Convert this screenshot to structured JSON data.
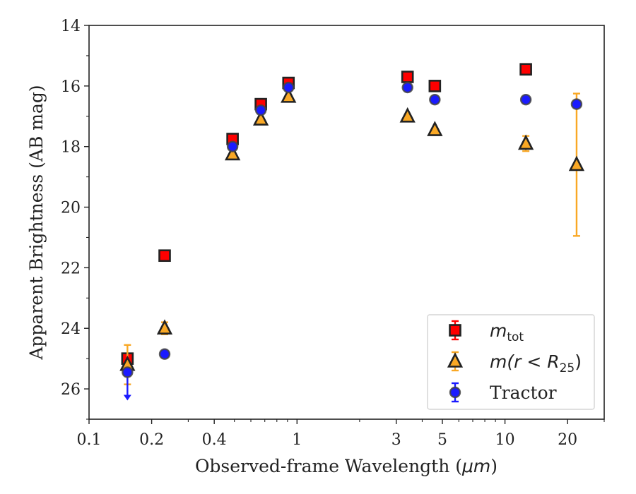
{
  "chart_data": {
    "type": "scatter",
    "title": "",
    "xlabel": "Observed-frame Wavelength (",
    "xlabel_unit": "μm",
    "xlabel_close": ")",
    "ylabel": "Apparent Brightness (AB mag)",
    "x_scale": "log",
    "xlim": [
      0.1,
      30
    ],
    "ylim": [
      27,
      14
    ],
    "y_inverted": true,
    "x_ticks": [
      0.1,
      0.2,
      0.4,
      1,
      3,
      5,
      10,
      20
    ],
    "x_tick_labels": [
      "0.1",
      "0.2",
      "0.4",
      "1",
      "3",
      "5",
      "10",
      "20"
    ],
    "y_ticks": [
      14,
      16,
      18,
      20,
      22,
      24,
      26
    ],
    "y_tick_labels": [
      "14",
      "16",
      "18",
      "20",
      "22",
      "24",
      "26"
    ],
    "grid": false,
    "legend_position": "bottom-right",
    "series": [
      {
        "name": "m_tot",
        "legend_label": {
          "base": "m",
          "sub": "tot"
        },
        "marker": "square",
        "color": "#ff0000",
        "edgecolor": "#222222",
        "errcolor": "#ff0000",
        "points": [
          {
            "x": 0.153,
            "y": 25.0,
            "err": 0.1
          },
          {
            "x": 0.231,
            "y": 21.6,
            "err": 0.05
          },
          {
            "x": 0.49,
            "y": 17.75,
            "err": 0.05
          },
          {
            "x": 0.67,
            "y": 16.6,
            "err": 0.05
          },
          {
            "x": 0.91,
            "y": 15.9,
            "err": 0.05
          },
          {
            "x": 3.4,
            "y": 15.7,
            "err": 0.05
          },
          {
            "x": 4.6,
            "y": 16.0,
            "err": 0.05
          },
          {
            "x": 12.6,
            "y": 15.45,
            "err": 0.05
          }
        ]
      },
      {
        "name": "m(r<R25)",
        "legend_label": {
          "base": "m(r < R",
          "sub": "25",
          "close": ")"
        },
        "marker": "triangle",
        "color": "#f9a825",
        "edgecolor": "#222222",
        "errcolor": "#f9a825",
        "points": [
          {
            "x": 0.153,
            "y": 25.2,
            "err": 0.65
          },
          {
            "x": 0.231,
            "y": 24.0,
            "err": 0.2
          },
          {
            "x": 0.49,
            "y": 18.25,
            "err": 0.05
          },
          {
            "x": 0.67,
            "y": 17.1,
            "err": 0.05
          },
          {
            "x": 0.91,
            "y": 16.35,
            "err": 0.05
          },
          {
            "x": 3.4,
            "y": 17.0,
            "err": 0.05
          },
          {
            "x": 4.6,
            "y": 17.45,
            "err": 0.05
          },
          {
            "x": 12.6,
            "y": 17.9,
            "err": 0.25
          },
          {
            "x": 22.1,
            "y": 18.6,
            "err_low": 2.35,
            "err_high": 2.35
          }
        ]
      },
      {
        "name": "Tractor",
        "legend_label": {
          "base": "Tractor"
        },
        "marker": "circle",
        "color": "#1a1aff",
        "edgecolor": "#444444",
        "errcolor": "#1a1aff",
        "points": [
          {
            "x": 0.153,
            "y": 25.45,
            "upper_limit": true
          },
          {
            "x": 0.231,
            "y": 24.85,
            "err": 0.05
          },
          {
            "x": 0.49,
            "y": 18.0,
            "err": 0.05
          },
          {
            "x": 0.67,
            "y": 16.8,
            "err": 0.05
          },
          {
            "x": 0.91,
            "y": 16.05,
            "err": 0.05
          },
          {
            "x": 3.4,
            "y": 16.05,
            "err": 0.05
          },
          {
            "x": 4.6,
            "y": 16.45,
            "err": 0.05
          },
          {
            "x": 12.6,
            "y": 16.45,
            "err": 0.05
          },
          {
            "x": 22.1,
            "y": 16.6,
            "err": 0.05
          }
        ]
      }
    ]
  }
}
